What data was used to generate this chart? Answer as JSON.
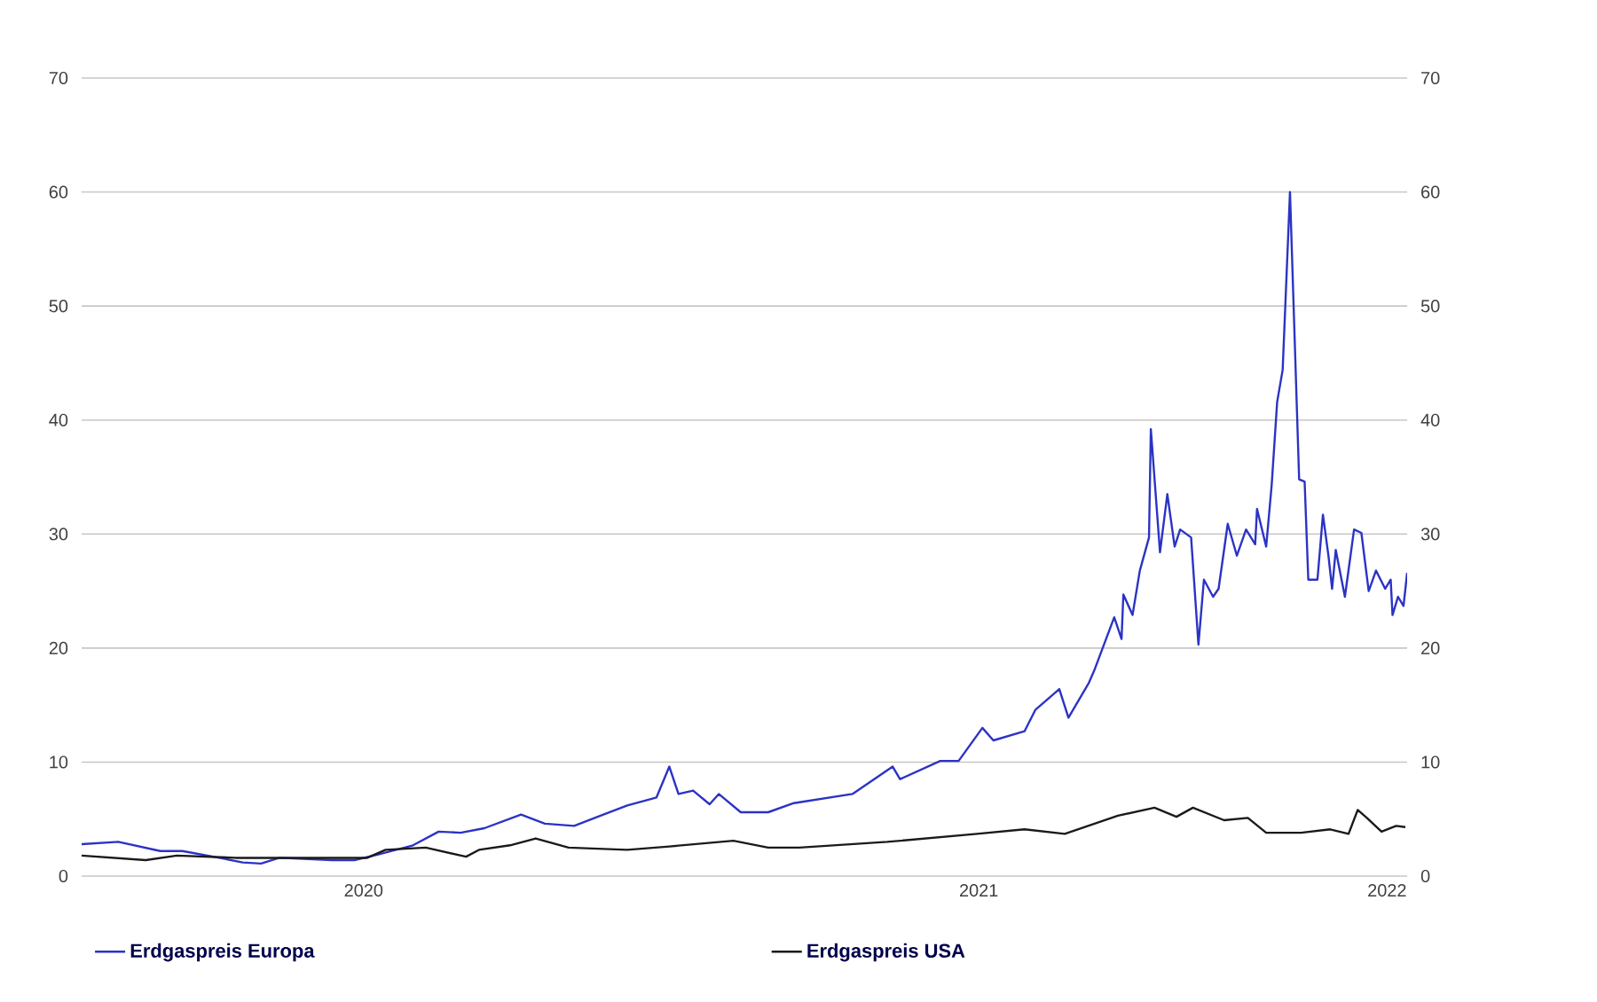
{
  "chart_data": {
    "type": "line",
    "x": [
      "2020-03-01",
      "2020-03-21",
      "2020-04-13",
      "2020-04-25",
      "2020-05-12",
      "2020-05-28",
      "2020-06-07",
      "2020-06-17",
      "2020-07-16",
      "2020-07-28",
      "2020-08-10",
      "2020-08-29",
      "2020-09-12",
      "2020-09-24",
      "2020-10-07",
      "2020-10-27",
      "2020-11-09",
      "2020-11-25",
      "2020-12-11",
      "2020-12-24",
      "2021-01-09",
      "2021-01-16",
      "2021-01-21",
      "2021-01-29",
      "2021-02-07",
      "2021-02-12",
      "2021-02-24",
      "2021-03-11",
      "2021-03-25",
      "2021-04-26",
      "2021-05-18",
      "2021-05-22",
      "2021-06-13",
      "2021-06-23",
      "2021-07-06",
      "2021-07-12",
      "2021-07-29",
      "2021-08-04",
      "2021-08-17",
      "2021-08-22",
      "2021-09-02",
      "2021-09-05",
      "2021-09-16",
      "2021-09-20",
      "2021-09-21",
      "2021-09-26",
      "2021-09-30",
      "2021-10-05",
      "2021-10-06",
      "2021-10-11",
      "2021-10-15",
      "2021-10-19",
      "2021-10-22",
      "2021-10-28",
      "2021-11-01",
      "2021-11-04",
      "2021-11-09",
      "2021-11-12",
      "2021-11-17",
      "2021-11-22",
      "2021-11-27",
      "2021-12-02",
      "2021-12-03",
      "2021-12-08",
      "2021-12-11",
      "2021-12-14",
      "2021-12-17",
      "2021-12-21",
      "2021-12-26",
      "2021-12-29",
      "2021-12-31",
      "2022-01-05",
      "2022-01-08",
      "2022-01-11",
      "2022-01-13",
      "2022-01-15",
      "2022-01-20",
      "2022-01-25",
      "2022-01-29",
      "2022-02-02",
      "2022-02-06",
      "2022-02-11",
      "2022-02-14",
      "2022-02-15",
      "2022-02-18",
      "2022-02-21",
      "2022-02-23"
    ],
    "series": [
      {
        "name": "Erdgaspreis Europa",
        "color": "#2b33c4",
        "values": [
          2.8,
          3.0,
          2.2,
          2.2,
          1.7,
          1.2,
          1.1,
          1.6,
          1.4,
          1.4,
          1.9,
          2.7,
          3.9,
          3.8,
          4.2,
          5.4,
          4.6,
          4.4,
          5.4,
          6.2,
          6.9,
          9.6,
          7.2,
          7.5,
          6.3,
          7.2,
          5.6,
          5.6,
          6.4,
          7.2,
          9.6,
          8.5,
          10.1,
          10.1,
          13.0,
          11.9,
          12.7,
          14.6,
          16.4,
          13.9,
          16.9,
          18.0,
          22.7,
          20.8,
          24.7,
          22.9,
          26.8,
          29.7,
          39.2,
          28.4,
          33.5,
          28.9,
          30.4,
          29.7,
          20.3,
          26.0,
          24.5,
          25.2,
          30.9,
          28.1,
          30.4,
          29.1,
          32.2,
          28.9,
          34.3,
          41.6,
          44.4,
          60.0,
          34.8,
          34.6,
          26.0,
          26.0,
          31.7,
          28.1,
          25.2,
          28.6,
          24.5,
          30.4,
          30.1,
          25.0,
          26.8,
          25.2,
          26.0,
          22.9,
          24.5,
          23.7,
          26.6
        ]
      },
      {
        "name": "Erdgaspreis USA",
        "color": "#1a1a1a",
        "x": [
          "2020-03-01",
          "2020-04-05",
          "2020-04-22",
          "2020-05-24",
          "2020-06-26",
          "2020-08-04",
          "2020-08-14",
          "2020-09-05",
          "2020-09-27",
          "2020-10-04",
          "2020-10-21",
          "2020-11-04",
          "2020-11-22",
          "2020-12-24",
          "2021-01-16",
          "2021-02-20",
          "2021-03-11",
          "2021-03-28",
          "2021-05-15",
          "2021-07-03",
          "2021-07-29",
          "2021-08-20",
          "2021-09-18",
          "2021-10-08",
          "2021-10-20",
          "2021-10-29",
          "2021-11-15",
          "2021-11-28",
          "2021-12-08",
          "2021-12-27",
          "2022-01-12",
          "2022-01-22",
          "2022-01-27",
          "2022-02-01",
          "2022-02-09",
          "2022-02-17",
          "2022-02-22"
        ],
        "values": [
          1.8,
          1.4,
          1.8,
          1.6,
          1.6,
          1.6,
          2.3,
          2.5,
          1.7,
          2.3,
          2.7,
          3.3,
          2.5,
          2.3,
          2.6,
          3.1,
          2.5,
          2.5,
          3.0,
          3.7,
          4.1,
          3.7,
          5.3,
          6.0,
          5.2,
          6.0,
          4.9,
          5.1,
          3.8,
          3.8,
          4.1,
          3.7,
          5.8,
          5.1,
          3.9,
          4.4,
          4.3
        ]
      }
    ],
    "xlim": [
      "2020-03-01",
      "2022-02-23"
    ],
    "xticks": [
      {
        "value": "2020-08-02",
        "label": "2020"
      },
      {
        "value": "2021-07-04",
        "label": "2021"
      },
      {
        "value": "2022-02-12",
        "label": "2022"
      }
    ],
    "ylim": [
      0,
      70
    ],
    "yticks": [
      0,
      10,
      20,
      30,
      40,
      50,
      60,
      70
    ],
    "y2lim": [
      0,
      70
    ],
    "y2ticks": [
      0,
      10,
      20,
      30,
      40,
      50,
      60,
      70
    ],
    "grid": "y",
    "legend": "bottom",
    "marker": "none",
    "line_style": "solid"
  }
}
